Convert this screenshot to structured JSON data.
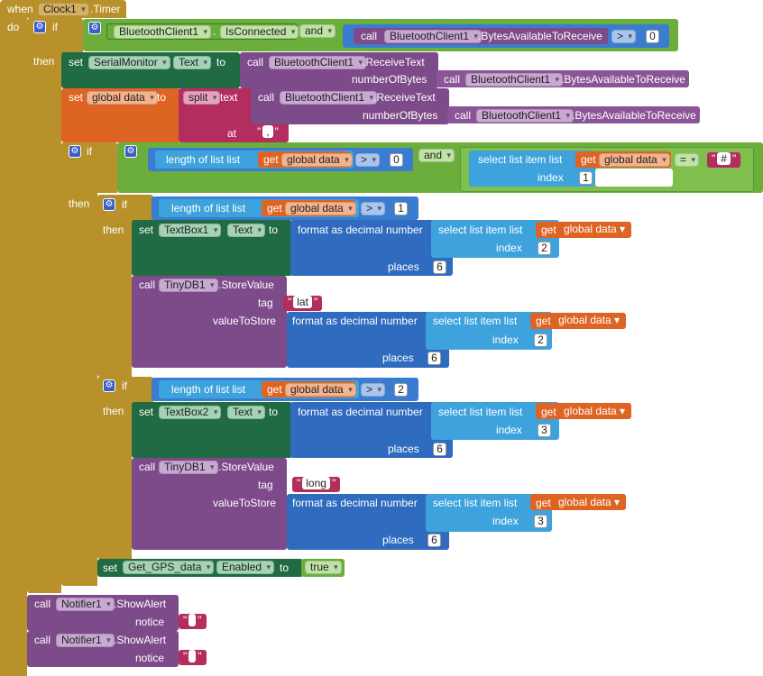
{
  "event": {
    "when": "when",
    "component": "Clock1",
    "event": ".Timer",
    "do": "do"
  },
  "kw": {
    "if": "if",
    "then": "then",
    "and": "and",
    "set": "set",
    "to": "to",
    "call": "call",
    "get": "get"
  },
  "if1": {
    "component": "BluetoothClient1",
    "dot": ".",
    "property": "IsConnected",
    "call_component": "BluetoothClient1",
    "call_method": ".BytesAvailableToReceive",
    "op": ">",
    "value": "0"
  },
  "set_serial": {
    "component": "SerialMonitor",
    "property": "Text",
    "call_component": "BluetoothClient1",
    "call_method": ".ReceiveText",
    "arg_label": "numberOfBytes",
    "inner_component": "BluetoothClient1",
    "inner_method": ".BytesAvailableToReceive"
  },
  "set_data": {
    "variable": "global data",
    "split": "split",
    "text_label": "text",
    "call_component": "BluetoothClient1",
    "call_method": ".ReceiveText",
    "arg_label": "numberOfBytes",
    "inner_component": "BluetoothClient1",
    "inner_method": ".BytesAvailableToReceive",
    "at_label": "at",
    "at_value": ","
  },
  "if2": {
    "length_label": "length of list  list",
    "variable": "global data",
    "op1": ">",
    "value1": "0",
    "select_label": "select list item  list",
    "op2": "=",
    "value2": "#",
    "index_label": "index",
    "index_value": "1"
  },
  "if3": {
    "length_label": "length of list  list",
    "variable": "global data",
    "op": ">",
    "value": "1",
    "set_component": "TextBox1",
    "set_property": "Text",
    "format_label": "format as decimal number",
    "number_label": "number",
    "select_label": "select list item  list",
    "index_label": "index",
    "index_value": "2",
    "places_label": "places",
    "places_value": "6",
    "db_component": "TinyDB1",
    "db_method": ".StoreValue",
    "tag_label": "tag",
    "tag_value": "lat",
    "vts_label": "valueToStore",
    "index2_value": "2",
    "places2_value": "6"
  },
  "if4": {
    "length_label": "length of list  list",
    "variable": "global data",
    "op": ">",
    "value": "2",
    "set_component": "TextBox2",
    "set_property": "Text",
    "format_label": "format as decimal number",
    "select_label": "select list item  list",
    "index_label": "index",
    "index_value": "3",
    "places_label": "places",
    "places_value": "6",
    "db_component": "TinyDB1",
    "db_method": ".StoreValue",
    "tag_label": "tag",
    "tag_value": "long",
    "vts_label": "valueToStore",
    "index2_value": "3",
    "places2_value": "6"
  },
  "set_gps": {
    "component": "Get_GPS_data",
    "property": "Enabled",
    "value": "true"
  },
  "alert1": {
    "component": "Notifier1",
    "method": ".ShowAlert",
    "arg_label": "notice"
  },
  "alert2": {
    "component": "Notifier1",
    "method": ".ShowAlert",
    "arg_label": "notice"
  },
  "colors": {
    "control": "#b8912b",
    "logic": "#6cae3c",
    "component_setter": "#206b43",
    "math": "#2f6bbf",
    "lists": "#3ea3dc",
    "variables": "#dd6423",
    "text": "#b32d5e",
    "component_call": "#7d4a8a"
  },
  "icons": {
    "mutator": "gear-icon",
    "dropdown": "chevron-down-icon"
  }
}
